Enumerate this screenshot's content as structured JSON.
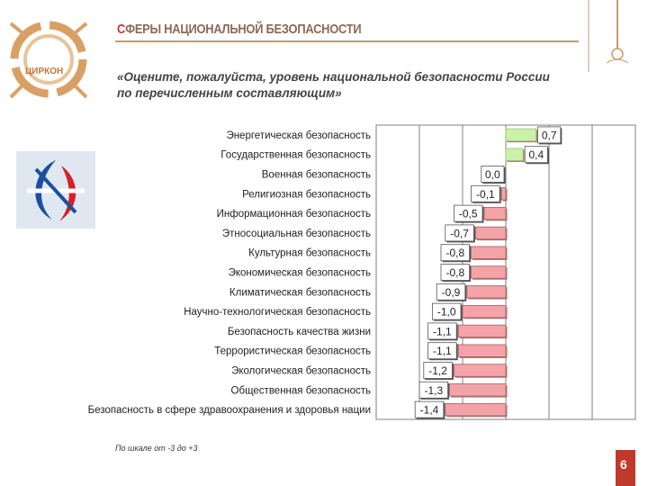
{
  "slide": {
    "title_first": "С",
    "title_rest": "ФЕРЫ НАЦИОНАЛЬНОЙ БЕЗОПАСНОСТИ",
    "subtitle_line1": "«Оцените, пожалуйста, уровень национальной безопасности России",
    "subtitle_line2": "по перечисленным составляющим»",
    "logo_label": "ЦИРКОН",
    "scale_note": "По шкале от -3 до +3",
    "page_number": "6"
  },
  "colors": {
    "positive_bar": "#ccf0a8",
    "negative_bar": "#f4a3a8",
    "bar_border": "#a06060",
    "grid": "#808080",
    "accent": "#c0392b"
  },
  "chart_data": {
    "type": "bar",
    "orientation": "horizontal",
    "xlim": [
      -3,
      3
    ],
    "grid": true,
    "categories": [
      "Энергетическая безопасность",
      "Государственная безопасность",
      "Военная безопасность",
      "Религиозная безопасность",
      "Информационная безопасность",
      "Этносоциальная безопасность",
      "Культурная безопасность",
      "Экономическая безопасность",
      "Климатическая безопасность",
      "Научно-технологическая безопасность",
      "Безопасность качества жизни",
      "Террористическая безопасность",
      "Экологическая безопасность",
      "Общественная безопасность",
      "Безопасность в сфере здравоохранения и здоровья нации"
    ],
    "values": [
      0.7,
      0.4,
      0.0,
      -0.1,
      -0.5,
      -0.7,
      -0.8,
      -0.8,
      -0.9,
      -1.0,
      -1.1,
      -1.1,
      -1.2,
      -1.3,
      -1.4
    ],
    "labels": [
      "0,7",
      "0,4",
      "0,0",
      "-0,1",
      "-0,5",
      "-0,7",
      "-0,8",
      "-0,8",
      "-0,9",
      "-1,0",
      "-1,1",
      "-1,1",
      "-1,2",
      "-1,3",
      "-1,4"
    ]
  }
}
